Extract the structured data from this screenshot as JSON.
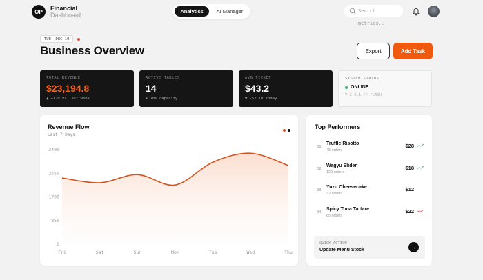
{
  "header": {
    "logo": "OP",
    "brand": "Financial",
    "brand_sub": "Dashboard",
    "tabs": [
      "Analytics",
      "AI Manager"
    ],
    "search_placeholder": "Search metrics.."
  },
  "page": {
    "date": "TUE, DEC 19",
    "title": "Business Overview",
    "buttons": [
      "Export",
      "Add Task"
    ]
  },
  "kpis": [
    {
      "label": "TOTAL REVENUE",
      "value": "$23,194.8",
      "sub": "▲ +12% vs last week"
    },
    {
      "label": "ACTIVE TABLES",
      "value": "14",
      "sub": "• 70% capacity"
    },
    {
      "label": "AVG TICKET",
      "value": "$43.2",
      "sub": "▼ -$2.10 today"
    },
    {
      "label": "SYSTEM STATUS",
      "value": "ONLINE",
      "sub": "V 2.5.1 // FLASH"
    }
  ],
  "chart_data": {
    "type": "line",
    "title": "Revenue Flow",
    "subtitle": "Last 7 Days",
    "categories": [
      "Fri",
      "Sat",
      "Sun",
      "Mon",
      "Tue",
      "Wed",
      "Thu"
    ],
    "series": [
      {
        "color": "#d4531f",
        "values": [
          2380,
          2210,
          2500,
          2130,
          2950,
          3270,
          2830
        ]
      }
    ],
    "ylim": [
      0,
      3400
    ],
    "yticks": [
      0,
      850,
      1700,
      2550,
      3400
    ]
  },
  "top_performers": {
    "title": "Top Performers",
    "items": [
      {
        "rank": "01",
        "name": "Truffle Risotto",
        "orders": "45 orders",
        "price": "$28"
      },
      {
        "rank": "02",
        "name": "Wagyu Slider",
        "orders": "120 orders",
        "price": "$18"
      },
      {
        "rank": "03",
        "name": "Yuzu Cheesecake",
        "orders": "32 orders",
        "price": "$12"
      },
      {
        "rank": "04",
        "name": "Spicy Tuna Tartare",
        "orders": "85 orders",
        "price": "$22"
      }
    ],
    "quick_action_label": "QUICK ACTION",
    "quick_action": "Update Menu Stock"
  }
}
